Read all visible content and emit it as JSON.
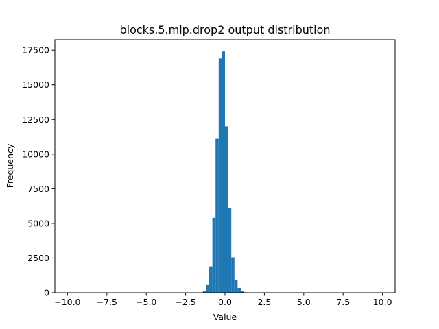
{
  "chart_data": {
    "type": "bar",
    "title": "blocks.5.mlp.drop2 output distribution",
    "xlabel": "Value",
    "ylabel": "Frequency",
    "xlim": [
      -10.8,
      10.8
    ],
    "ylim": [
      0,
      18250
    ],
    "xticks": [
      -10.0,
      -7.5,
      -5.0,
      -2.5,
      0.0,
      2.5,
      5.0,
      7.5,
      10.0
    ],
    "xtick_labels": [
      "−10.0",
      "−7.5",
      "−5.0",
      "−2.5",
      "0.0",
      "2.5",
      "5.0",
      "7.5",
      "10.0"
    ],
    "yticks": [
      0,
      2500,
      5000,
      7500,
      10000,
      12500,
      15000,
      17500
    ],
    "ytick_labels": [
      "0",
      "2500",
      "5000",
      "7500",
      "10000",
      "12500",
      "15000",
      "17500"
    ],
    "grid": false,
    "color": "#1f77b4",
    "bins": [
      {
        "x0": -1.6,
        "x1": -1.4,
        "value": 20
      },
      {
        "x0": -1.4,
        "x1": -1.2,
        "value": 120
      },
      {
        "x0": -1.2,
        "x1": -1.0,
        "value": 550
      },
      {
        "x0": -1.0,
        "x1": -0.8,
        "value": 1900
      },
      {
        "x0": -0.8,
        "x1": -0.6,
        "value": 5400
      },
      {
        "x0": -0.6,
        "x1": -0.4,
        "value": 11100
      },
      {
        "x0": -0.4,
        "x1": -0.2,
        "value": 16900
      },
      {
        "x0": -0.2,
        "x1": 0.0,
        "value": 17400
      },
      {
        "x0": 0.0,
        "x1": 0.2,
        "value": 12000
      },
      {
        "x0": 0.2,
        "x1": 0.4,
        "value": 6100
      },
      {
        "x0": 0.4,
        "x1": 0.6,
        "value": 2550
      },
      {
        "x0": 0.6,
        "x1": 0.8,
        "value": 900
      },
      {
        "x0": 0.8,
        "x1": 1.0,
        "value": 350
      },
      {
        "x0": 1.0,
        "x1": 1.2,
        "value": 100
      },
      {
        "x0": 1.2,
        "x1": 1.4,
        "value": 30
      }
    ]
  }
}
